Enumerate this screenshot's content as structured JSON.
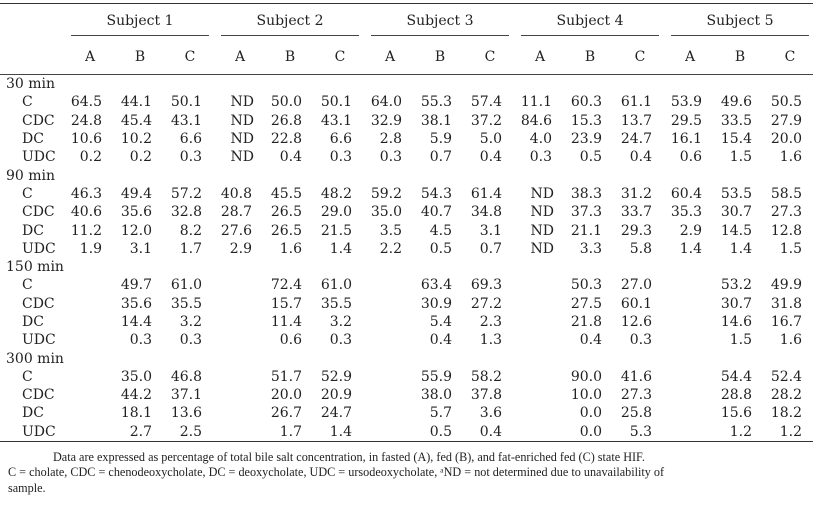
{
  "header": {
    "subjects": [
      "Subject 1",
      "Subject 2",
      "Subject 3",
      "Subject 4",
      "Subject 5"
    ],
    "states": [
      "A",
      "B",
      "C"
    ]
  },
  "sections": [
    {
      "label": "30 min",
      "rows": [
        {
          "label": "C",
          "values": [
            "64.5",
            "44.1",
            "50.1",
            "ND",
            "50.0",
            "50.1",
            "64.0",
            "55.3",
            "57.4",
            "11.1",
            "60.3",
            "61.1",
            "53.9",
            "49.6",
            "50.5"
          ]
        },
        {
          "label": "CDC",
          "values": [
            "24.8",
            "45.4",
            "43.1",
            "ND",
            "26.8",
            "43.1",
            "32.9",
            "38.1",
            "37.2",
            "84.6",
            "15.3",
            "13.7",
            "29.5",
            "33.5",
            "27.9"
          ]
        },
        {
          "label": "DC",
          "values": [
            "10.6",
            "10.2",
            "6.6",
            "ND",
            "22.8",
            "6.6",
            "2.8",
            "5.9",
            "5.0",
            "4.0",
            "23.9",
            "24.7",
            "16.1",
            "15.4",
            "20.0"
          ]
        },
        {
          "label": "UDC",
          "values": [
            "0.2",
            "0.2",
            "0.3",
            "ND",
            "0.4",
            "0.3",
            "0.3",
            "0.7",
            "0.4",
            "0.3",
            "0.5",
            "0.4",
            "0.6",
            "1.5",
            "1.6"
          ]
        }
      ]
    },
    {
      "label": "90 min",
      "rows": [
        {
          "label": "C",
          "values": [
            "46.3",
            "49.4",
            "57.2",
            "40.8",
            "45.5",
            "48.2",
            "59.2",
            "54.3",
            "61.4",
            "ND",
            "38.3",
            "31.2",
            "60.4",
            "53.5",
            "58.5"
          ]
        },
        {
          "label": "CDC",
          "values": [
            "40.6",
            "35.6",
            "32.8",
            "28.7",
            "26.5",
            "29.0",
            "35.0",
            "40.7",
            "34.8",
            "ND",
            "37.3",
            "33.7",
            "35.3",
            "30.7",
            "27.3"
          ]
        },
        {
          "label": "DC",
          "values": [
            "11.2",
            "12.0",
            "8.2",
            "27.6",
            "26.5",
            "21.5",
            "3.5",
            "4.5",
            "3.1",
            "ND",
            "21.1",
            "29.3",
            "2.9",
            "14.5",
            "12.8"
          ]
        },
        {
          "label": "UDC",
          "values": [
            "1.9",
            "3.1",
            "1.7",
            "2.9",
            "1.6",
            "1.4",
            "2.2",
            "0.5",
            "0.7",
            "ND",
            "3.3",
            "5.8",
            "1.4",
            "1.4",
            "1.5"
          ]
        }
      ]
    },
    {
      "label": "150 min",
      "rows": [
        {
          "label": "C",
          "values": [
            "",
            "49.7",
            "61.0",
            "",
            "72.4",
            "61.0",
            "",
            "63.4",
            "69.3",
            "",
            "50.3",
            "27.0",
            "",
            "53.2",
            "49.9"
          ]
        },
        {
          "label": "CDC",
          "values": [
            "",
            "35.6",
            "35.5",
            "",
            "15.7",
            "35.5",
            "",
            "30.9",
            "27.2",
            "",
            "27.5",
            "60.1",
            "",
            "30.7",
            "31.8"
          ]
        },
        {
          "label": "DC",
          "values": [
            "",
            "14.4",
            "3.2",
            "",
            "11.4",
            "3.2",
            "",
            "5.4",
            "2.3",
            "",
            "21.8",
            "12.6",
            "",
            "14.6",
            "16.7"
          ]
        },
        {
          "label": "UDC",
          "values": [
            "",
            "0.3",
            "0.3",
            "",
            "0.6",
            "0.3",
            "",
            "0.4",
            "1.3",
            "",
            "0.4",
            "0.3",
            "",
            "1.5",
            "1.6"
          ]
        }
      ]
    },
    {
      "label": "300 min",
      "rows": [
        {
          "label": "C",
          "values": [
            "",
            "35.0",
            "46.8",
            "",
            "51.7",
            "52.9",
            "",
            "55.9",
            "58.2",
            "",
            "90.0",
            "41.6",
            "",
            "54.4",
            "52.4"
          ]
        },
        {
          "label": "CDC",
          "values": [
            "",
            "44.2",
            "37.1",
            "",
            "20.0",
            "20.9",
            "",
            "38.0",
            "37.8",
            "",
            "10.0",
            "27.3",
            "",
            "28.8",
            "28.2"
          ]
        },
        {
          "label": "DC",
          "values": [
            "",
            "18.1",
            "13.6",
            "",
            "26.7",
            "24.7",
            "",
            "5.7",
            "3.6",
            "",
            "0.0",
            "25.8",
            "",
            "15.6",
            "18.2"
          ]
        },
        {
          "label": "UDC",
          "values": [
            "",
            "2.7",
            "2.5",
            "",
            "1.7",
            "1.4",
            "",
            "0.5",
            "0.4",
            "",
            "0.0",
            "5.3",
            "",
            "1.2",
            "1.2"
          ]
        }
      ]
    }
  ],
  "footnote": {
    "line1": "Data are expressed as percentage of total bile salt concentration, in fasted (A), fed (B), and fat-enriched fed (C) state HIF.",
    "line2": "C = cholate, CDC = chenodeoxycholate, DC = deoxycholate, UDC = ursodeoxycholate, ᵃND = not determined due to unavailability of",
    "line3": "sample."
  }
}
